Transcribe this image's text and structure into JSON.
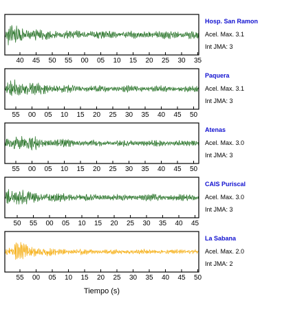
{
  "chart_data": {
    "type": "line",
    "xlabel": "Tiempo (s)",
    "panels": [
      {
        "station": "Hosp. San Ramon",
        "accel_label": "Acel. Max. 3.1",
        "jma_label": "Int JMA: 3",
        "color": "#1a6a1a",
        "tick_labels": [
          "40",
          "45",
          "50",
          "55",
          "00",
          "05",
          "10",
          "15",
          "20",
          "25",
          "30",
          "35"
        ]
      },
      {
        "station": "Paquera",
        "accel_label": "Acel. Max. 3.1",
        "jma_label": "Int JMA: 3",
        "color": "#1a6a1a",
        "tick_labels": [
          "55",
          "00",
          "05",
          "10",
          "15",
          "20",
          "25",
          "30",
          "35",
          "40",
          "45",
          "50"
        ]
      },
      {
        "station": "Atenas",
        "accel_label": "Acel. Max. 3.0",
        "jma_label": "Int JMA: 3",
        "color": "#1a6a1a",
        "tick_labels": [
          "55",
          "00",
          "05",
          "10",
          "15",
          "20",
          "25",
          "30",
          "35",
          "40",
          "45",
          "50"
        ]
      },
      {
        "station": "CAIS Puriscal",
        "accel_label": "Acel. Max. 3.0",
        "jma_label": "Int JMA: 3",
        "color": "#1a6a1a",
        "tick_labels": [
          "50",
          "55",
          "00",
          "05",
          "10",
          "15",
          "20",
          "25",
          "30",
          "35",
          "40",
          "45"
        ]
      },
      {
        "station": "La Sabana",
        "accel_label": "Acel. Max. 2.0",
        "jma_label": "Int JMA: 2",
        "color": "#f5a800",
        "tick_labels": [
          "55",
          "00",
          "05",
          "10",
          "15",
          "20",
          "25",
          "30",
          "35",
          "40",
          "45",
          "50"
        ]
      }
    ]
  }
}
